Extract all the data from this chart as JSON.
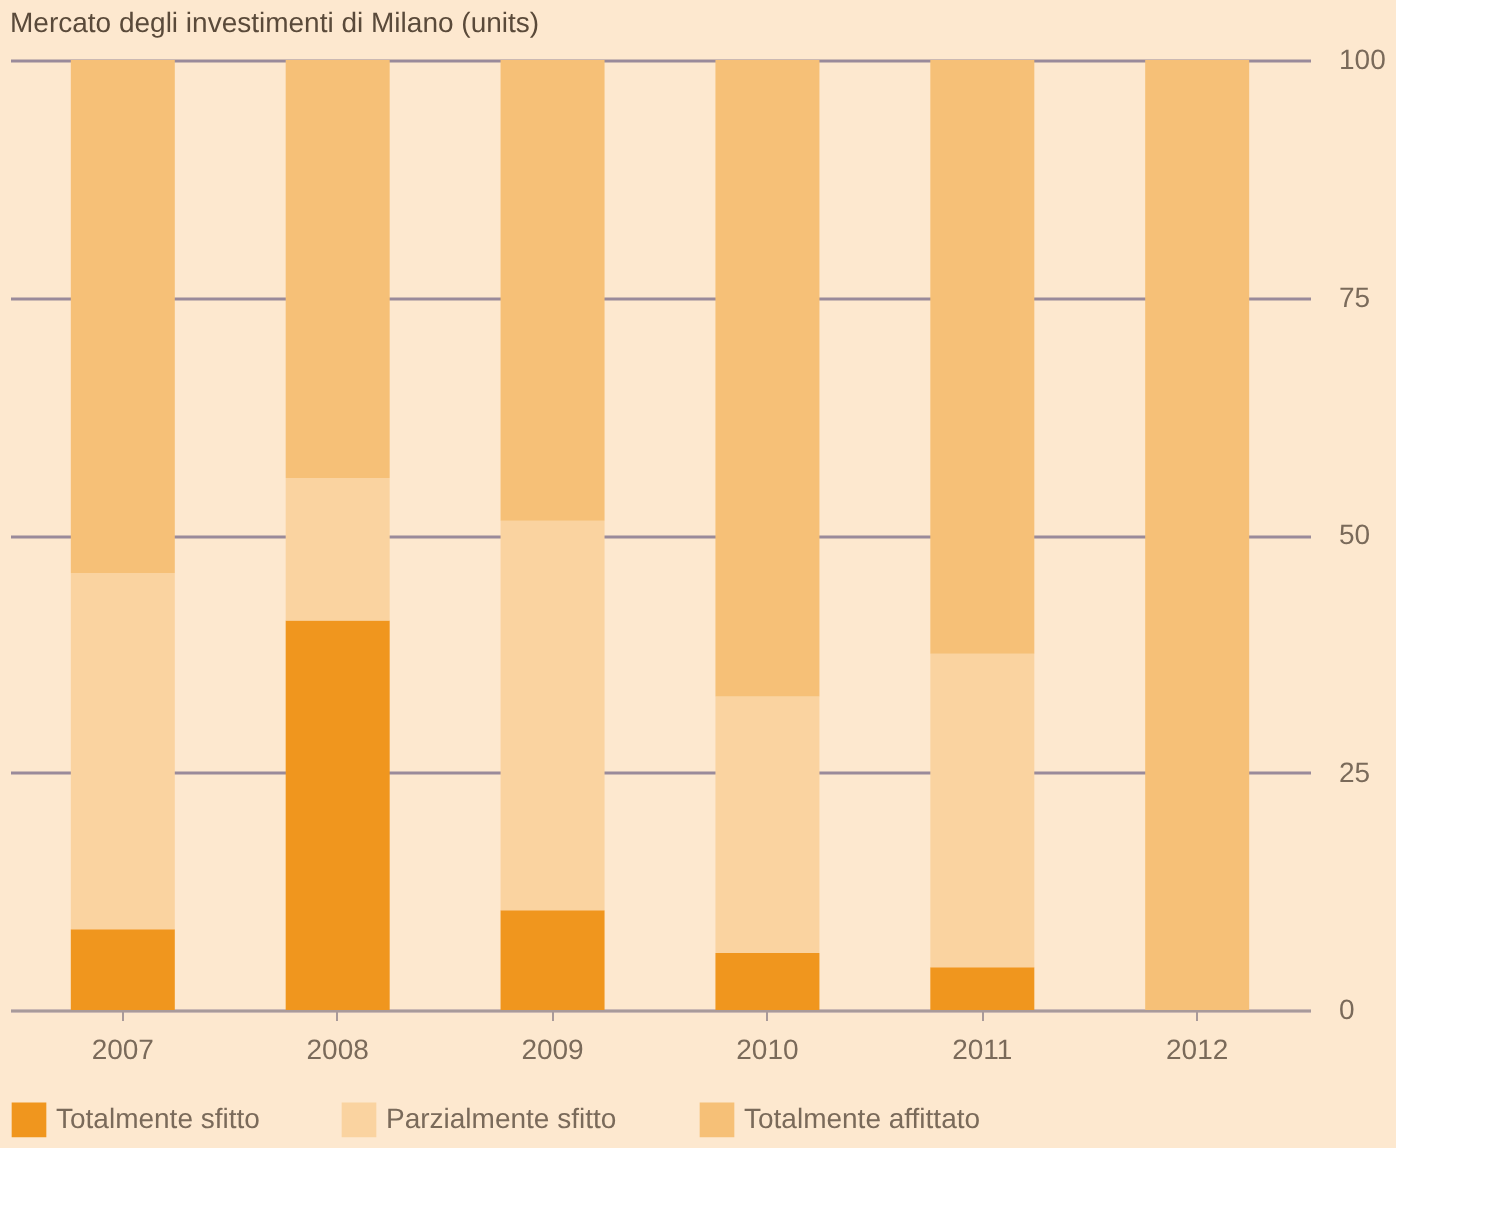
{
  "chart_data": {
    "type": "bar",
    "title": "Mercato degli investimenti di Milano (units)",
    "stacked": true,
    "categories": [
      "2007",
      "2008",
      "2009",
      "2010",
      "2011",
      "2012"
    ],
    "series": [
      {
        "name": "Totalmente sfitto",
        "color": "#f0961e",
        "values": [
          8.5,
          41,
          10.5,
          6,
          4.5,
          0
        ]
      },
      {
        "name": "Parzialmente sfitto",
        "color": "#fad3a0",
        "values": [
          37.5,
          15,
          41,
          27,
          33,
          0
        ]
      },
      {
        "name": "Totalmente affittato",
        "color": "#f6c077",
        "values": [
          54,
          44,
          48.5,
          67,
          62.5,
          100
        ]
      }
    ],
    "ylim": [
      0,
      100
    ],
    "yticks": [
      0,
      25,
      50,
      75,
      100
    ],
    "grid": "y",
    "legend": "bottom"
  }
}
